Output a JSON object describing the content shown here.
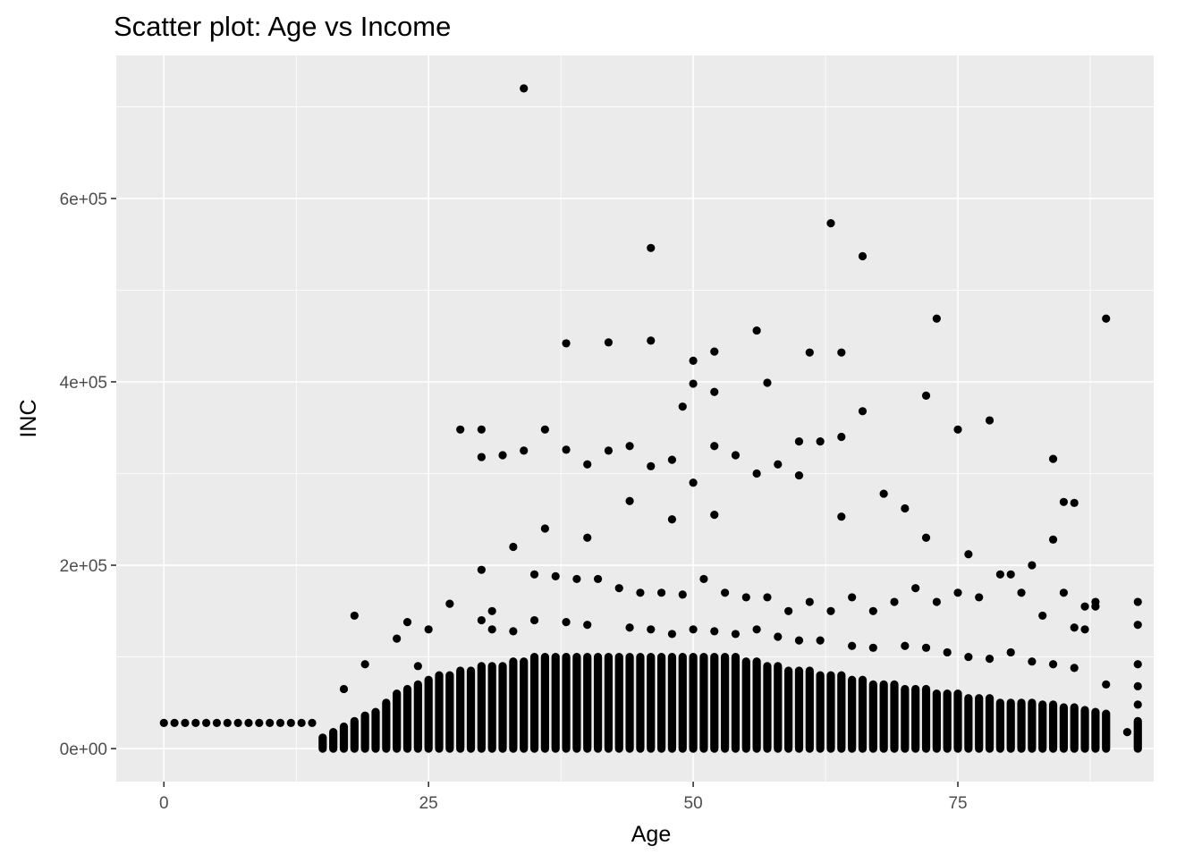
{
  "chart_data": {
    "type": "scatter",
    "title": "Scatter plot: Age vs Income",
    "xlabel": "Age",
    "ylabel": "INC",
    "xlim": [
      -4.5,
      93.5
    ],
    "ylim": [
      -36000,
      756000
    ],
    "x_ticks": [
      0,
      25,
      50,
      75
    ],
    "x_tick_labels": [
      "0",
      "25",
      "50",
      "75"
    ],
    "y_ticks": [
      0,
      200000,
      400000,
      600000
    ],
    "y_tick_labels": [
      "0e+00",
      "2e+05",
      "4e+05",
      "6e+05"
    ],
    "grid": true,
    "legend": "none",
    "colors": {
      "panel_background": "#ebebeb",
      "grid": "#ffffff",
      "point": "#000000",
      "text": "#000000",
      "tick_text": "#4d4d4d",
      "tick": "#333333"
    },
    "dense_band": {
      "description_free": true,
      "ages": [
        15,
        16,
        17,
        18,
        19,
        20,
        21,
        22,
        23,
        24,
        25,
        26,
        27,
        28,
        29,
        30,
        31,
        32,
        33,
        34,
        35,
        36,
        37,
        38,
        39,
        40,
        41,
        42,
        43,
        44,
        45,
        46,
        47,
        48,
        49,
        50,
        51,
        52,
        53,
        54,
        55,
        56,
        57,
        58,
        59,
        60,
        61,
        62,
        63,
        64,
        65,
        66,
        67,
        68,
        69,
        70,
        71,
        72,
        73,
        74,
        75,
        76,
        77,
        78,
        79,
        80,
        81,
        82,
        83,
        84,
        85,
        86,
        87,
        88,
        89,
        92
      ],
      "tops": [
        12000,
        18000,
        24000,
        30000,
        36000,
        40000,
        50000,
        60000,
        65000,
        70000,
        75000,
        80000,
        80000,
        85000,
        85000,
        90000,
        90000,
        90000,
        95000,
        95000,
        100000,
        100000,
        100000,
        100000,
        100000,
        100000,
        100000,
        100000,
        100000,
        100000,
        100000,
        100000,
        100000,
        100000,
        100000,
        100000,
        100000,
        100000,
        100000,
        100000,
        95000,
        95000,
        90000,
        90000,
        85000,
        85000,
        85000,
        80000,
        80000,
        80000,
        75000,
        75000,
        70000,
        70000,
        70000,
        65000,
        65000,
        65000,
        60000,
        60000,
        60000,
        55000,
        55000,
        55000,
        50000,
        50000,
        50000,
        50000,
        48000,
        48000,
        45000,
        45000,
        42000,
        40000,
        38000,
        30000
      ]
    },
    "series": [
      {
        "x": [
          0,
          1,
          2,
          3,
          4,
          5,
          6,
          7,
          8,
          9,
          10,
          11,
          12,
          13,
          14,
          34,
          46,
          46,
          63,
          66,
          56,
          52,
          61,
          64,
          73,
          89,
          38,
          42,
          50,
          50,
          52,
          30,
          30,
          28,
          36,
          49,
          72,
          57,
          75,
          78,
          85,
          86,
          84,
          88,
          86,
          32,
          34,
          38,
          40,
          42,
          44,
          46,
          48,
          50,
          52,
          54,
          56,
          58,
          60,
          62,
          64,
          66,
          36,
          40,
          44,
          48,
          52,
          60,
          64,
          68,
          70,
          72,
          76,
          80,
          82,
          84,
          18,
          19,
          17,
          22,
          23,
          24,
          25,
          27,
          30,
          31,
          33,
          35,
          37,
          39,
          41,
          43,
          45,
          47,
          49,
          51,
          53,
          55,
          57,
          59,
          61,
          63,
          65,
          67,
          69,
          71,
          73,
          75,
          77,
          79,
          81,
          83,
          85,
          87,
          87,
          88,
          89,
          92,
          92,
          92,
          92,
          92,
          91,
          30,
          31,
          33,
          35,
          38,
          40,
          44,
          46,
          48,
          50,
          52,
          54,
          56,
          58,
          60,
          62,
          65,
          67,
          70,
          72,
          74,
          76,
          78,
          80,
          82,
          84,
          86
        ],
        "y": [
          28000,
          28000,
          28000,
          28000,
          28000,
          28000,
          28000,
          28000,
          28000,
          28000,
          28000,
          28000,
          28000,
          28000,
          28000,
          720000,
          546000,
          445000,
          573000,
          537000,
          456000,
          433000,
          432000,
          432000,
          469000,
          469000,
          442000,
          443000,
          423000,
          398000,
          389000,
          348000,
          318000,
          348000,
          348000,
          373000,
          385000,
          399000,
          348000,
          358000,
          269000,
          268000,
          316000,
          155000,
          132000,
          320000,
          325000,
          326000,
          310000,
          325000,
          330000,
          308000,
          315000,
          290000,
          330000,
          320000,
          300000,
          310000,
          335000,
          335000,
          340000,
          368000,
          240000,
          230000,
          270000,
          250000,
          255000,
          298000,
          253000,
          278000,
          262000,
          230000,
          212000,
          190000,
          200000,
          228000,
          145000,
          92000,
          65000,
          120000,
          138000,
          90000,
          130000,
          158000,
          195000,
          150000,
          220000,
          190000,
          188000,
          185000,
          185000,
          175000,
          170000,
          170000,
          168000,
          185000,
          170000,
          165000,
          165000,
          150000,
          160000,
          150000,
          165000,
          150000,
          160000,
          175000,
          160000,
          170000,
          165000,
          190000,
          170000,
          145000,
          170000,
          155000,
          130000,
          160000,
          70000,
          160000,
          135000,
          92000,
          68000,
          48000,
          18000,
          140000,
          130000,
          128000,
          140000,
          138000,
          135000,
          132000,
          130000,
          125000,
          130000,
          128000,
          125000,
          130000,
          122000,
          118000,
          118000,
          112000,
          110000,
          112000,
          110000,
          105000,
          100000,
          98000,
          105000,
          95000,
          92000,
          88000
        ]
      }
    ]
  }
}
